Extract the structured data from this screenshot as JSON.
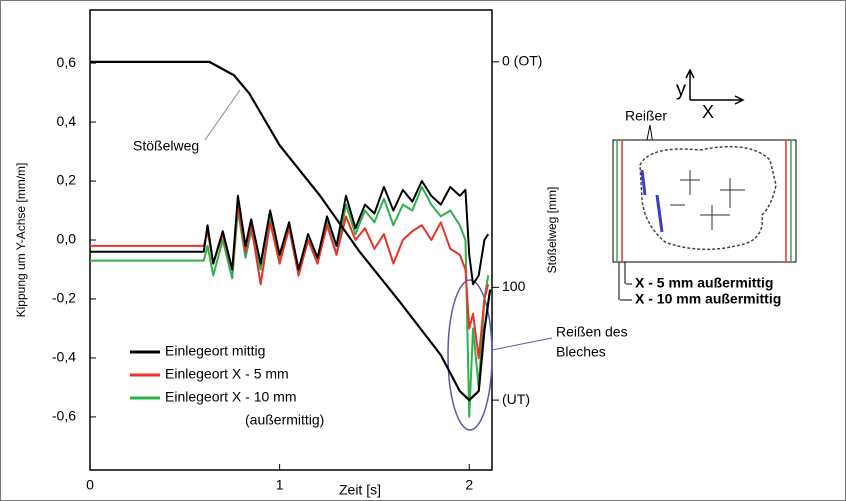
{
  "chart_data": {
    "type": "line",
    "x": [
      0,
      0.6,
      0.62,
      0.65,
      0.7,
      0.75,
      0.78,
      0.82,
      0.85,
      0.9,
      0.95,
      1.0,
      1.05,
      1.1,
      1.15,
      1.2,
      1.25,
      1.3,
      1.35,
      1.4,
      1.45,
      1.5,
      1.55,
      1.6,
      1.65,
      1.7,
      1.75,
      1.8,
      1.85,
      1.9,
      1.95,
      1.98,
      2.0,
      2.02,
      2.05,
      2.08,
      2.1
    ],
    "series": [
      {
        "name": "Einlegeort mittig",
        "color": "#000000",
        "values": [
          -0.04,
          -0.04,
          0.05,
          -0.08,
          0.03,
          -0.1,
          0.15,
          -0.02,
          0.07,
          -0.08,
          0.1,
          -0.05,
          0.06,
          -0.1,
          0.02,
          -0.06,
          0.08,
          -0.02,
          0.15,
          0.04,
          0.12,
          0.09,
          0.18,
          0.1,
          0.17,
          0.13,
          0.2,
          0.15,
          0.12,
          0.18,
          0.15,
          0.17,
          -0.05,
          -0.15,
          -0.12,
          0.0,
          0.02
        ]
      },
      {
        "name": "Einlegeort X - 5 mm",
        "color": "#e8322a",
        "values": [
          -0.02,
          -0.02,
          0.03,
          -0.08,
          0.02,
          -0.1,
          0.12,
          -0.04,
          0.05,
          -0.15,
          0.06,
          -0.08,
          0.04,
          -0.12,
          0.0,
          -0.08,
          0.05,
          -0.05,
          0.08,
          0.0,
          0.04,
          -0.03,
          0.02,
          -0.08,
          0.0,
          0.03,
          0.05,
          0.0,
          0.06,
          -0.03,
          -0.05,
          -0.1,
          -0.3,
          -0.25,
          -0.4,
          -0.2,
          -0.15
        ]
      },
      {
        "name": "Einlegeort X - 10 mm",
        "color": "#2eb04b",
        "values": [
          -0.07,
          -0.07,
          -0.02,
          -0.12,
          0.0,
          -0.13,
          0.1,
          -0.06,
          0.03,
          -0.1,
          0.08,
          -0.07,
          0.04,
          -0.12,
          0.0,
          -0.07,
          0.06,
          -0.05,
          0.12,
          0.02,
          0.1,
          0.06,
          0.14,
          0.05,
          0.12,
          0.1,
          0.18,
          0.12,
          0.08,
          0.1,
          0.05,
          0.0,
          -0.6,
          -0.3,
          -0.5,
          -0.2,
          -0.12
        ]
      }
    ],
    "ram_series": {
      "x": [
        0,
        0.63,
        0.76,
        0.84,
        1.0,
        1.21,
        1.42,
        1.63,
        1.85,
        1.95,
        2.0,
        2.05,
        2.08,
        2.11
      ],
      "values": [
        0,
        0,
        6,
        14,
        37,
        59,
        84,
        106,
        130,
        146,
        150,
        146,
        119,
        101
      ],
      "color": "#000000",
      "axis": "y2"
    },
    "legend_note": "(außermittig)",
    "xlabel": "Zeit [s]",
    "ylabel": "Kippung um Y-Achse [mm/m]",
    "y2label": "Stößelweg [mm]",
    "xlim": [
      0,
      2.12
    ],
    "xticks": [
      0,
      1,
      2
    ],
    "ylim": [
      -0.78,
      0.78
    ],
    "yticks": [
      {
        "value": -0.6,
        "label": "-0,6"
      },
      {
        "value": -0.4,
        "label": "-0,4"
      },
      {
        "value": -0.2,
        "label": "-0,2"
      },
      {
        "value": 0.0,
        "label": "0,0"
      },
      {
        "value": 0.2,
        "label": "0,2"
      },
      {
        "value": 0.4,
        "label": "0,4"
      },
      {
        "value": 0.6,
        "label": "0,6"
      }
    ],
    "y2lim": [
      -23,
      181
    ],
    "y2_inverted": true,
    "y2ticks": [
      {
        "value": 0,
        "label": "0 (OT)"
      },
      100,
      {
        "value": 150,
        "label": "(UT)"
      }
    ],
    "annotations": [
      "Stößelweg",
      "Reißen des",
      "Bleches"
    ]
  },
  "inset": {
    "axis_y": "y",
    "axis_x": "X",
    "tear_label": "Reißer",
    "offset_5": "X - 5 mm außermittig",
    "offset_10": "X - 10 mm außermittig"
  }
}
